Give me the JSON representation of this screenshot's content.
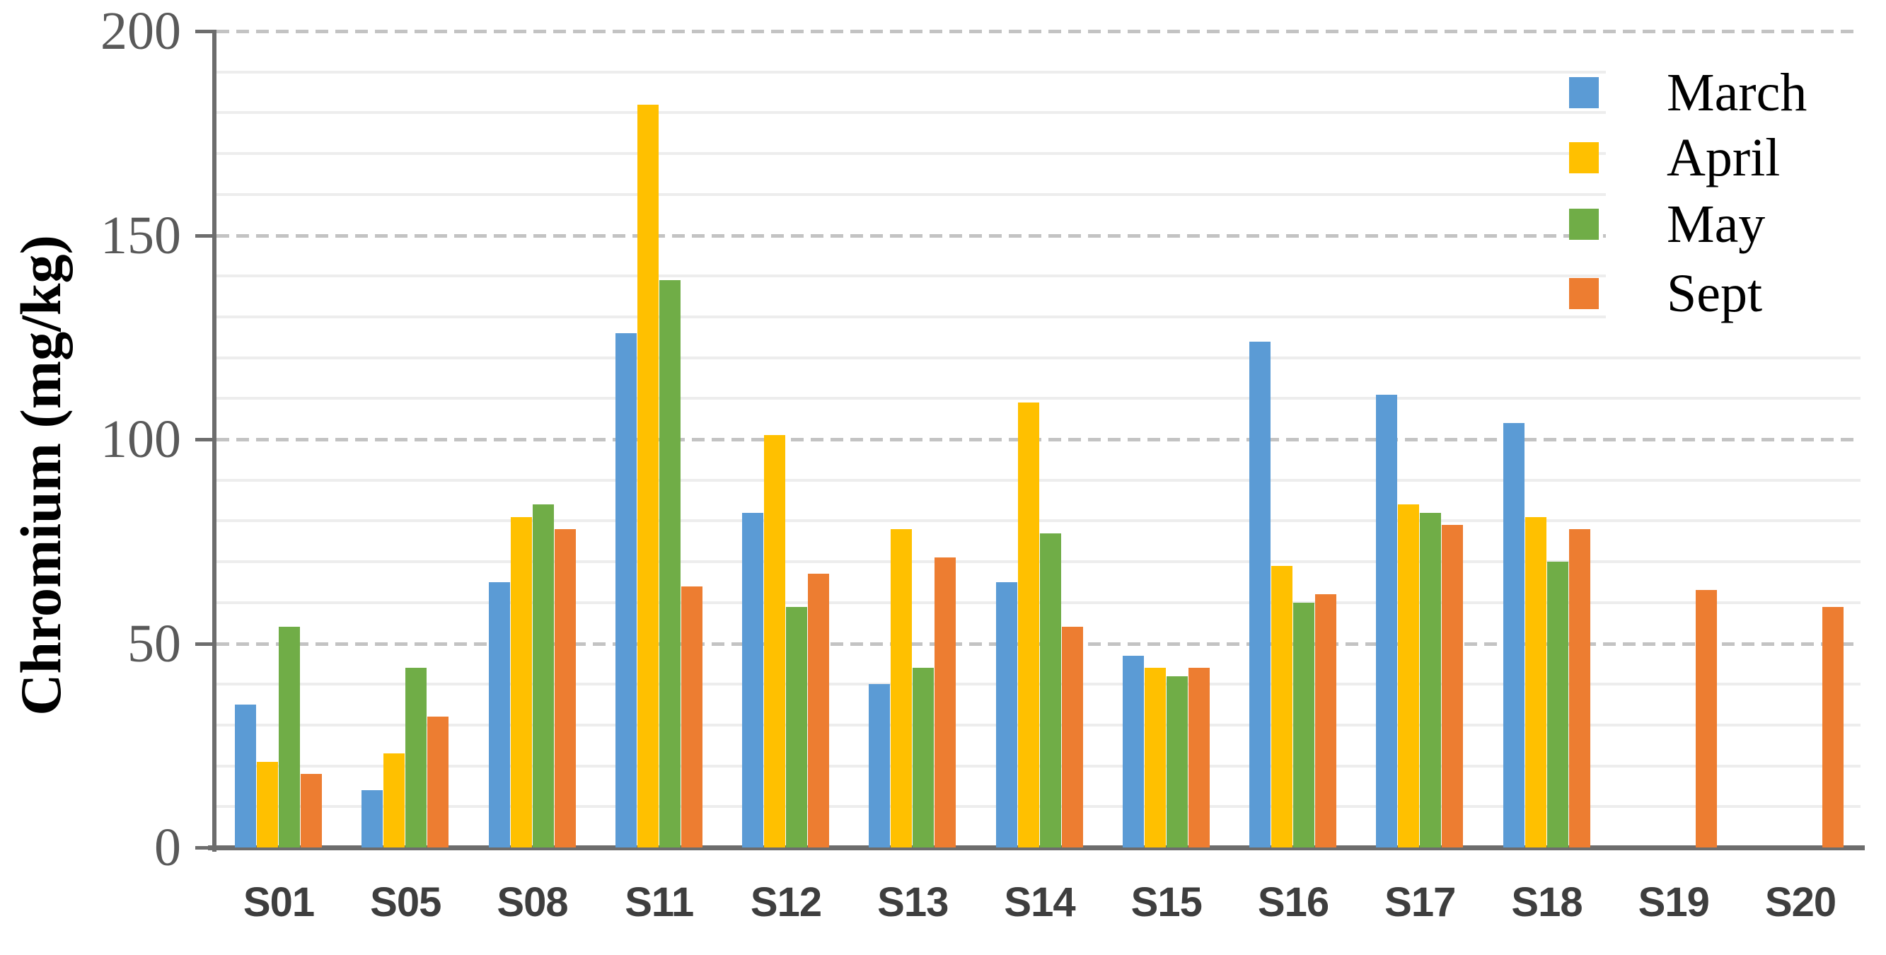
{
  "chart_data": {
    "type": "bar",
    "title": "",
    "xlabel": "",
    "ylabel": "Chromium (mg/kg)",
    "ylim": [
      0,
      200
    ],
    "ytick_labels": [
      "0",
      "50",
      "100",
      "150",
      "200"
    ],
    "ytick_values": [
      0,
      50,
      100,
      150,
      200
    ],
    "minor_grid_values": [
      10,
      20,
      30,
      40,
      60,
      70,
      80,
      90,
      110,
      120,
      130,
      140,
      160,
      170,
      180,
      190
    ],
    "major_grid_values": [
      50,
      100,
      150,
      200
    ],
    "grid": "minor solid light-gray every 10; major dashed gray every 50",
    "legend_position": "top-right",
    "categories": [
      "S01",
      "S05",
      "S08",
      "S11",
      "S12",
      "S13",
      "S14",
      "S15",
      "S16",
      "S17",
      "S18",
      "S19",
      "S20"
    ],
    "series": [
      {
        "name": "March",
        "color": "#5B9BD5",
        "values": [
          35,
          14,
          65,
          126,
          82,
          40,
          65,
          47,
          124,
          111,
          104,
          0,
          0
        ]
      },
      {
        "name": "April",
        "color": "#FFC000",
        "values": [
          21,
          23,
          81,
          182,
          101,
          78,
          109,
          44,
          69,
          84,
          81,
          0,
          0
        ]
      },
      {
        "name": "May",
        "color": "#70AD47",
        "values": [
          54,
          44,
          84,
          139,
          59,
          44,
          77,
          42,
          60,
          82,
          70,
          0,
          0
        ]
      },
      {
        "name": "Sept",
        "color": "#ED7D31",
        "values": [
          18,
          32,
          78,
          64,
          67,
          71,
          54,
          44,
          62,
          79,
          78,
          63,
          59
        ]
      }
    ]
  },
  "colors": {
    "axis": "#6d6d6d",
    "major_grid": "#c3c3c3",
    "minor_grid": "#ededed",
    "ytick_text": "#595959",
    "category_text": "#3e3e3e",
    "legend_text": "#000000",
    "axis_title_text": "#000000",
    "background": "#ffffff"
  }
}
